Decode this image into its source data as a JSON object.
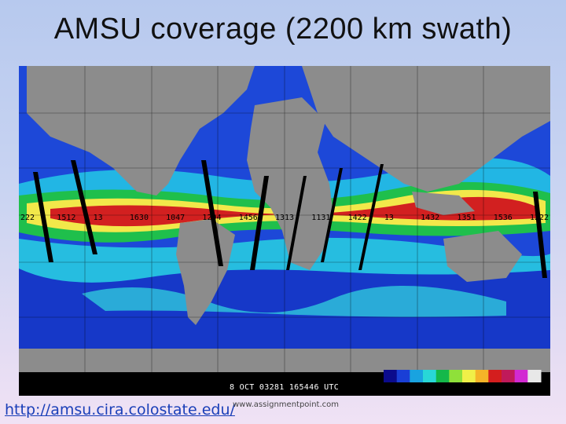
{
  "slide": {
    "title": "AMSU coverage (2200 km swath)",
    "source_url": "http://amsu.cira.colostate.edu/",
    "watermark": "www.assignmentpoint.com"
  },
  "map": {
    "timestamp": "8 OCT 03281 165446 UTC",
    "orbit_labels": [
      "222",
      "1512",
      "13",
      "1630",
      "1047",
      "1204",
      "1456",
      "1313",
      "1131",
      "1422",
      "13",
      "1432",
      "1351",
      "1536",
      "1222"
    ],
    "colorbar": [
      "#0b0b8c",
      "#1a3fd6",
      "#19a3e0",
      "#28d7d7",
      "#14b84a",
      "#8fe03a",
      "#f0f048",
      "#f5b428",
      "#d41e1e",
      "#c01a5a",
      "#d22ad2",
      "#e8e8e8"
    ],
    "colors": {
      "land": "#8c8c8c",
      "ocean_dry": "#1640d0",
      "ocean_moist": "#23b7e6",
      "ocean_wet": "#1fbf4c",
      "ocean_very_wet": "#d42020",
      "swath_gap": "#000000"
    }
  }
}
